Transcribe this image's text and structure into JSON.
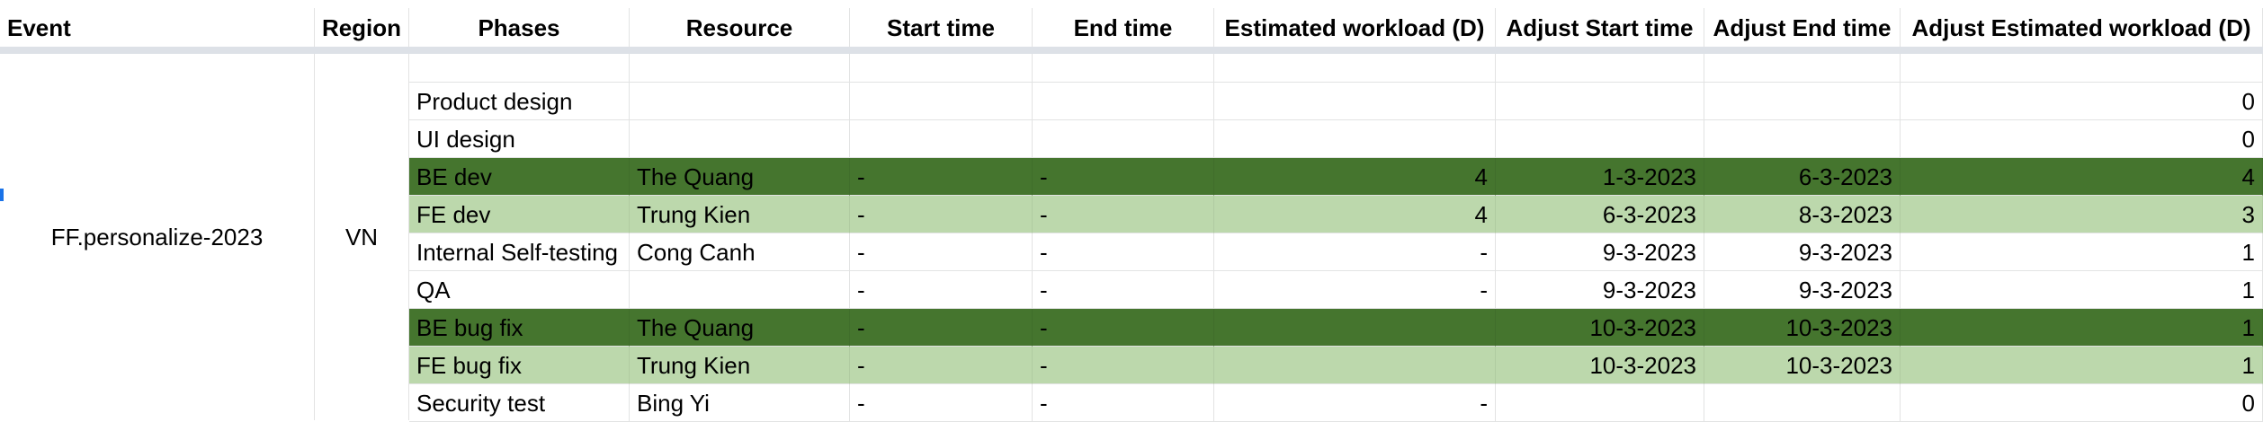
{
  "columns": [
    "Event",
    "Region",
    "Phases",
    "Resource",
    "Start time",
    "End time",
    "Estimated workload (D)",
    "Adjust Start time",
    "Adjust End time",
    "Adjust Estimated workload (D)"
  ],
  "event": "FF.personalize-2023",
  "region": "VN",
  "colors": {
    "dark_green": "#45752e",
    "light_green": "#bcd8ac",
    "header_divider": "#dde1e7",
    "selection": "#1a73e8"
  },
  "rows": [
    {
      "phase": "Product design",
      "resource": "",
      "start": "",
      "end": "",
      "est": "",
      "adj_start": "",
      "adj_end": "",
      "adj_est": "0",
      "fill": "none"
    },
    {
      "phase": "UI design",
      "resource": "",
      "start": "",
      "end": "",
      "est": "",
      "adj_start": "",
      "adj_end": "",
      "adj_est": "0",
      "fill": "none"
    },
    {
      "phase": "BE dev",
      "resource": "The Quang",
      "start": "-",
      "end": "-",
      "est": "4",
      "adj_start": "1-3-2023",
      "adj_end": "6-3-2023",
      "adj_est": "4",
      "fill": "dark"
    },
    {
      "phase": "FE dev",
      "resource": "Trung Kien",
      "start": "-",
      "end": "-",
      "est": "4",
      "adj_start": "6-3-2023",
      "adj_end": "8-3-2023",
      "adj_est": "3",
      "fill": "light"
    },
    {
      "phase": "Internal Self-testing",
      "resource": "Cong Canh",
      "start": "-",
      "end": "-",
      "est": "-",
      "adj_start": "9-3-2023",
      "adj_end": "9-3-2023",
      "adj_est": "1",
      "fill": "none"
    },
    {
      "phase": "QA",
      "resource": "",
      "start": "-",
      "end": "-",
      "est": "-",
      "adj_start": "9-3-2023",
      "adj_end": "9-3-2023",
      "adj_est": "1",
      "fill": "none"
    },
    {
      "phase": "BE bug fix",
      "resource": "The Quang",
      "start": "-",
      "end": "-",
      "est": "",
      "adj_start": "10-3-2023",
      "adj_end": "10-3-2023",
      "adj_est": "1",
      "fill": "dark"
    },
    {
      "phase": "FE bug fix",
      "resource": "Trung Kien",
      "start": "-",
      "end": "-",
      "est": "",
      "adj_start": "10-3-2023",
      "adj_end": "10-3-2023",
      "adj_est": "1",
      "fill": "light"
    },
    {
      "phase": "Security test",
      "resource": "Bing Yi",
      "start": "-",
      "end": "-",
      "est": "-",
      "adj_start": "",
      "adj_end": "",
      "adj_est": "0",
      "fill": "none"
    }
  ]
}
